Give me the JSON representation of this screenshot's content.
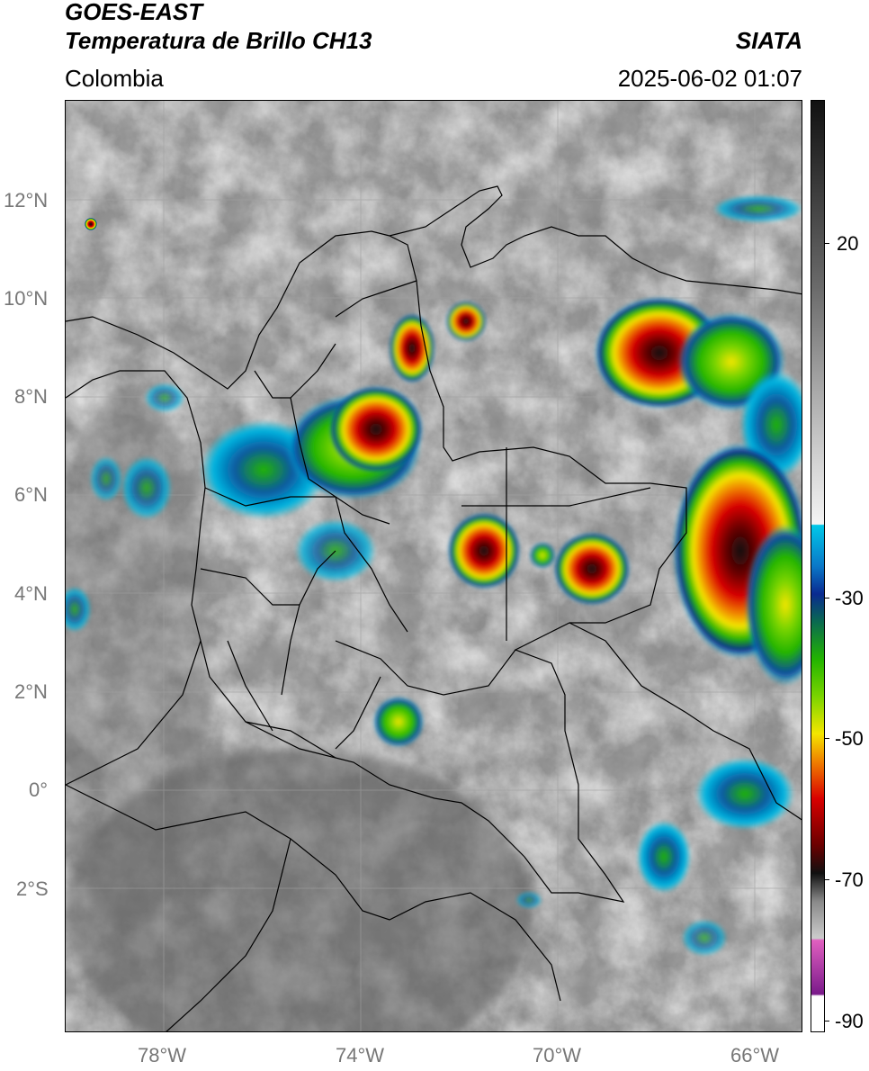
{
  "header": {
    "satellite": "GOES-EAST",
    "product": "Temperatura de Brillo CH13",
    "region": "Colombia",
    "agency": "SIATA",
    "timestamp": "2025-06-02 01:07"
  },
  "map": {
    "lat_labels": [
      "12°N",
      "10°N",
      "8°N",
      "6°N",
      "4°N",
      "2°N",
      "0°",
      "2°S"
    ],
    "lon_labels": [
      "78°W",
      "74°W",
      "70°W",
      "66°W"
    ],
    "extent": {
      "lon_min": -80,
      "lon_max": -65,
      "lat_min": -5,
      "lat_max": 14
    }
  },
  "colorbar": {
    "labels": [
      "20",
      "-30",
      "-50",
      "-70",
      "-90"
    ],
    "colors": {
      "gray_top": "#111111",
      "gray_bottom": "#f4f4f4",
      "cyan": "#00c8e8",
      "blue": "#0a2a90",
      "green": "#22b400",
      "yellow": "#f4e600",
      "orange": "#f08000",
      "red": "#d80000",
      "dark": "#101010",
      "pink": "#e060c0",
      "purple": "#7a1a8a"
    }
  }
}
